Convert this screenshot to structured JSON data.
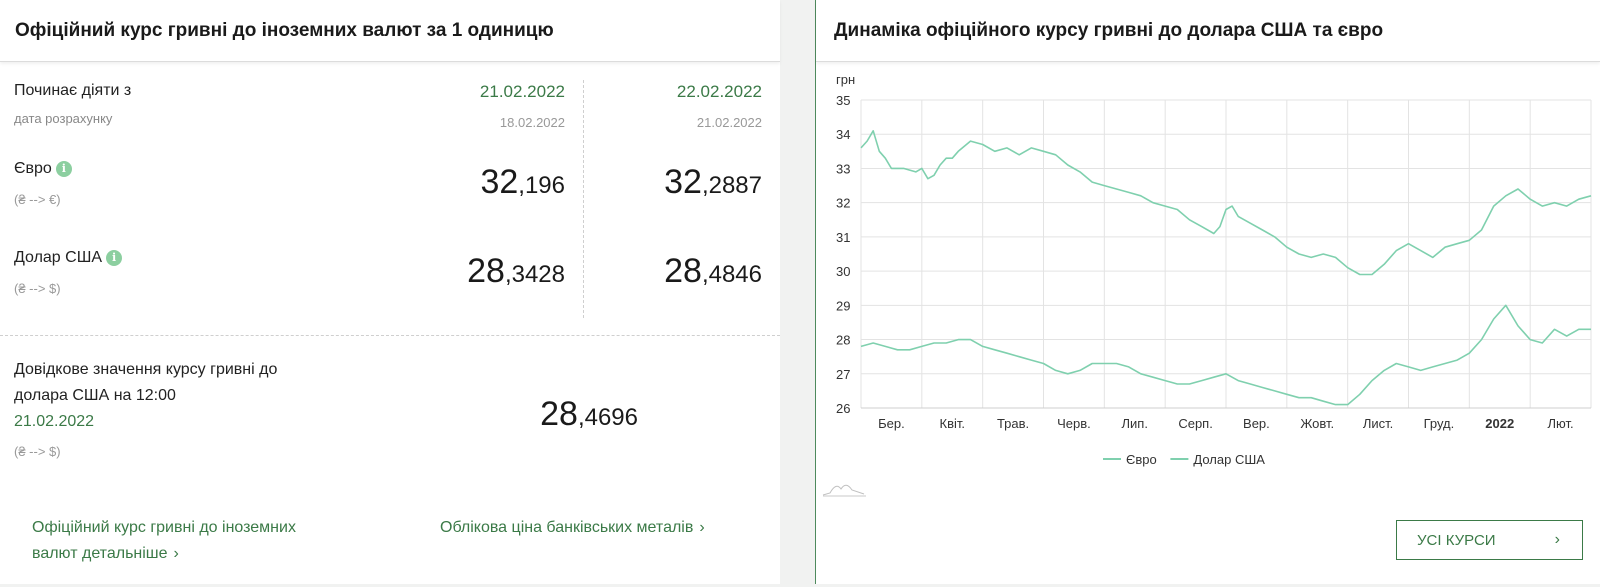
{
  "left_panel": {
    "title": "Офіційний курс гривні до іноземних валют за 1 одиницю",
    "starts_label": "Починає діяти з",
    "calc_date_label": "дата розрахунку",
    "columns": [
      {
        "date": "21.02.2022",
        "calc_date": "18.02.2022",
        "eur_int": "32",
        "eur_frac": ",196",
        "usd_int": "28",
        "usd_frac": ",3428"
      },
      {
        "date": "22.02.2022",
        "calc_date": "21.02.2022",
        "eur_int": "32",
        "eur_frac": ",2887",
        "usd_int": "28",
        "usd_frac": ",4846"
      }
    ],
    "eur_label": "Євро",
    "eur_sym": "(₴ --> €)",
    "usd_label": "Долар США",
    "usd_sym": "(₴ --> $)",
    "info_glyph": "i",
    "reference": {
      "line1": "Довідкове значення курсу гривні до",
      "line2": "долара США на 12:00",
      "date": "21.02.2022",
      "sym": "(₴ --> $)",
      "int": "28",
      "frac": ",4696"
    },
    "links": {
      "detail_line1": "Офіційний курс гривні до іноземних",
      "detail_line2": "валют детальніше",
      "metals": "Облікова ціна банківських металів",
      "chevron": "›"
    }
  },
  "right_panel": {
    "title": "Динаміка офіційного курсу гривні до долара США та євро",
    "all_rates_button": "УСІ КУРСИ",
    "chevron": "›"
  },
  "chart_data": {
    "type": "line",
    "ylabel": "грн",
    "ylim": [
      26,
      35
    ],
    "yticks": [
      26,
      27,
      28,
      29,
      30,
      31,
      32,
      33,
      34,
      35
    ],
    "xlim": [
      0,
      12
    ],
    "x_ticks": [
      {
        "x": 0.5,
        "label": "Бер.",
        "bold": false
      },
      {
        "x": 1.5,
        "label": "Квіт.",
        "bold": false
      },
      {
        "x": 2.5,
        "label": "Трав.",
        "bold": false
      },
      {
        "x": 3.5,
        "label": "Черв.",
        "bold": false
      },
      {
        "x": 4.5,
        "label": "Лип.",
        "bold": false
      },
      {
        "x": 5.5,
        "label": "Серп.",
        "bold": false
      },
      {
        "x": 6.5,
        "label": "Вер.",
        "bold": false
      },
      {
        "x": 7.5,
        "label": "Жовт.",
        "bold": false
      },
      {
        "x": 8.5,
        "label": "Лист.",
        "bold": false
      },
      {
        "x": 9.5,
        "label": "Груд.",
        "bold": false
      },
      {
        "x": 10.5,
        "label": "2022",
        "bold": true
      },
      {
        "x": 11.5,
        "label": "Лют.",
        "bold": false
      }
    ],
    "line_color": "#7fd0ae",
    "series": [
      {
        "name": "Євро",
        "points": [
          [
            0,
            33.6
          ],
          [
            0.1,
            33.8
          ],
          [
            0.2,
            34.1
          ],
          [
            0.3,
            33.5
          ],
          [
            0.4,
            33.3
          ],
          [
            0.5,
            33.0
          ],
          [
            0.7,
            33.0
          ],
          [
            0.9,
            32.9
          ],
          [
            1.0,
            33.0
          ],
          [
            1.1,
            32.7
          ],
          [
            1.2,
            32.8
          ],
          [
            1.3,
            33.1
          ],
          [
            1.4,
            33.3
          ],
          [
            1.5,
            33.3
          ],
          [
            1.6,
            33.5
          ],
          [
            1.8,
            33.8
          ],
          [
            2.0,
            33.7
          ],
          [
            2.2,
            33.5
          ],
          [
            2.4,
            33.6
          ],
          [
            2.6,
            33.4
          ],
          [
            2.8,
            33.6
          ],
          [
            3.0,
            33.5
          ],
          [
            3.2,
            33.4
          ],
          [
            3.4,
            33.1
          ],
          [
            3.6,
            32.9
          ],
          [
            3.8,
            32.6
          ],
          [
            4.0,
            32.5
          ],
          [
            4.2,
            32.4
          ],
          [
            4.4,
            32.3
          ],
          [
            4.6,
            32.2
          ],
          [
            4.8,
            32.0
          ],
          [
            5.0,
            31.9
          ],
          [
            5.2,
            31.8
          ],
          [
            5.4,
            31.5
          ],
          [
            5.6,
            31.3
          ],
          [
            5.8,
            31.1
          ],
          [
            5.9,
            31.3
          ],
          [
            6.0,
            31.8
          ],
          [
            6.1,
            31.9
          ],
          [
            6.2,
            31.6
          ],
          [
            6.4,
            31.4
          ],
          [
            6.6,
            31.2
          ],
          [
            6.8,
            31.0
          ],
          [
            7.0,
            30.7
          ],
          [
            7.2,
            30.5
          ],
          [
            7.4,
            30.4
          ],
          [
            7.6,
            30.5
          ],
          [
            7.8,
            30.4
          ],
          [
            8.0,
            30.1
          ],
          [
            8.2,
            29.9
          ],
          [
            8.4,
            29.9
          ],
          [
            8.6,
            30.2
          ],
          [
            8.8,
            30.6
          ],
          [
            9.0,
            30.8
          ],
          [
            9.2,
            30.6
          ],
          [
            9.4,
            30.4
          ],
          [
            9.6,
            30.7
          ],
          [
            9.8,
            30.8
          ],
          [
            10.0,
            30.9
          ],
          [
            10.2,
            31.2
          ],
          [
            10.4,
            31.9
          ],
          [
            10.6,
            32.2
          ],
          [
            10.8,
            32.4
          ],
          [
            11.0,
            32.1
          ],
          [
            11.2,
            31.9
          ],
          [
            11.4,
            32.0
          ],
          [
            11.6,
            31.9
          ],
          [
            11.8,
            32.1
          ],
          [
            12.0,
            32.2
          ]
        ]
      },
      {
        "name": "Долар США",
        "points": [
          [
            0,
            27.8
          ],
          [
            0.2,
            27.9
          ],
          [
            0.4,
            27.8
          ],
          [
            0.6,
            27.7
          ],
          [
            0.8,
            27.7
          ],
          [
            1.0,
            27.8
          ],
          [
            1.2,
            27.9
          ],
          [
            1.4,
            27.9
          ],
          [
            1.6,
            28.0
          ],
          [
            1.8,
            28.0
          ],
          [
            2.0,
            27.8
          ],
          [
            2.2,
            27.7
          ],
          [
            2.4,
            27.6
          ],
          [
            2.6,
            27.5
          ],
          [
            2.8,
            27.4
          ],
          [
            3.0,
            27.3
          ],
          [
            3.2,
            27.1
          ],
          [
            3.4,
            27.0
          ],
          [
            3.6,
            27.1
          ],
          [
            3.8,
            27.3
          ],
          [
            4.0,
            27.3
          ],
          [
            4.2,
            27.3
          ],
          [
            4.4,
            27.2
          ],
          [
            4.6,
            27.0
          ],
          [
            4.8,
            26.9
          ],
          [
            5.0,
            26.8
          ],
          [
            5.2,
            26.7
          ],
          [
            5.4,
            26.7
          ],
          [
            5.6,
            26.8
          ],
          [
            5.8,
            26.9
          ],
          [
            6.0,
            27.0
          ],
          [
            6.2,
            26.8
          ],
          [
            6.4,
            26.7
          ],
          [
            6.6,
            26.6
          ],
          [
            6.8,
            26.5
          ],
          [
            7.0,
            26.4
          ],
          [
            7.2,
            26.3
          ],
          [
            7.4,
            26.3
          ],
          [
            7.6,
            26.2
          ],
          [
            7.8,
            26.1
          ],
          [
            8.0,
            26.1
          ],
          [
            8.2,
            26.4
          ],
          [
            8.4,
            26.8
          ],
          [
            8.6,
            27.1
          ],
          [
            8.8,
            27.3
          ],
          [
            9.0,
            27.2
          ],
          [
            9.2,
            27.1
          ],
          [
            9.4,
            27.2
          ],
          [
            9.6,
            27.3
          ],
          [
            9.8,
            27.4
          ],
          [
            10.0,
            27.6
          ],
          [
            10.2,
            28.0
          ],
          [
            10.4,
            28.6
          ],
          [
            10.6,
            29.0
          ],
          [
            10.8,
            28.4
          ],
          [
            11.0,
            28.0
          ],
          [
            11.2,
            27.9
          ],
          [
            11.4,
            28.3
          ],
          [
            11.6,
            28.1
          ],
          [
            11.8,
            28.3
          ],
          [
            12.0,
            28.3
          ]
        ]
      }
    ]
  }
}
